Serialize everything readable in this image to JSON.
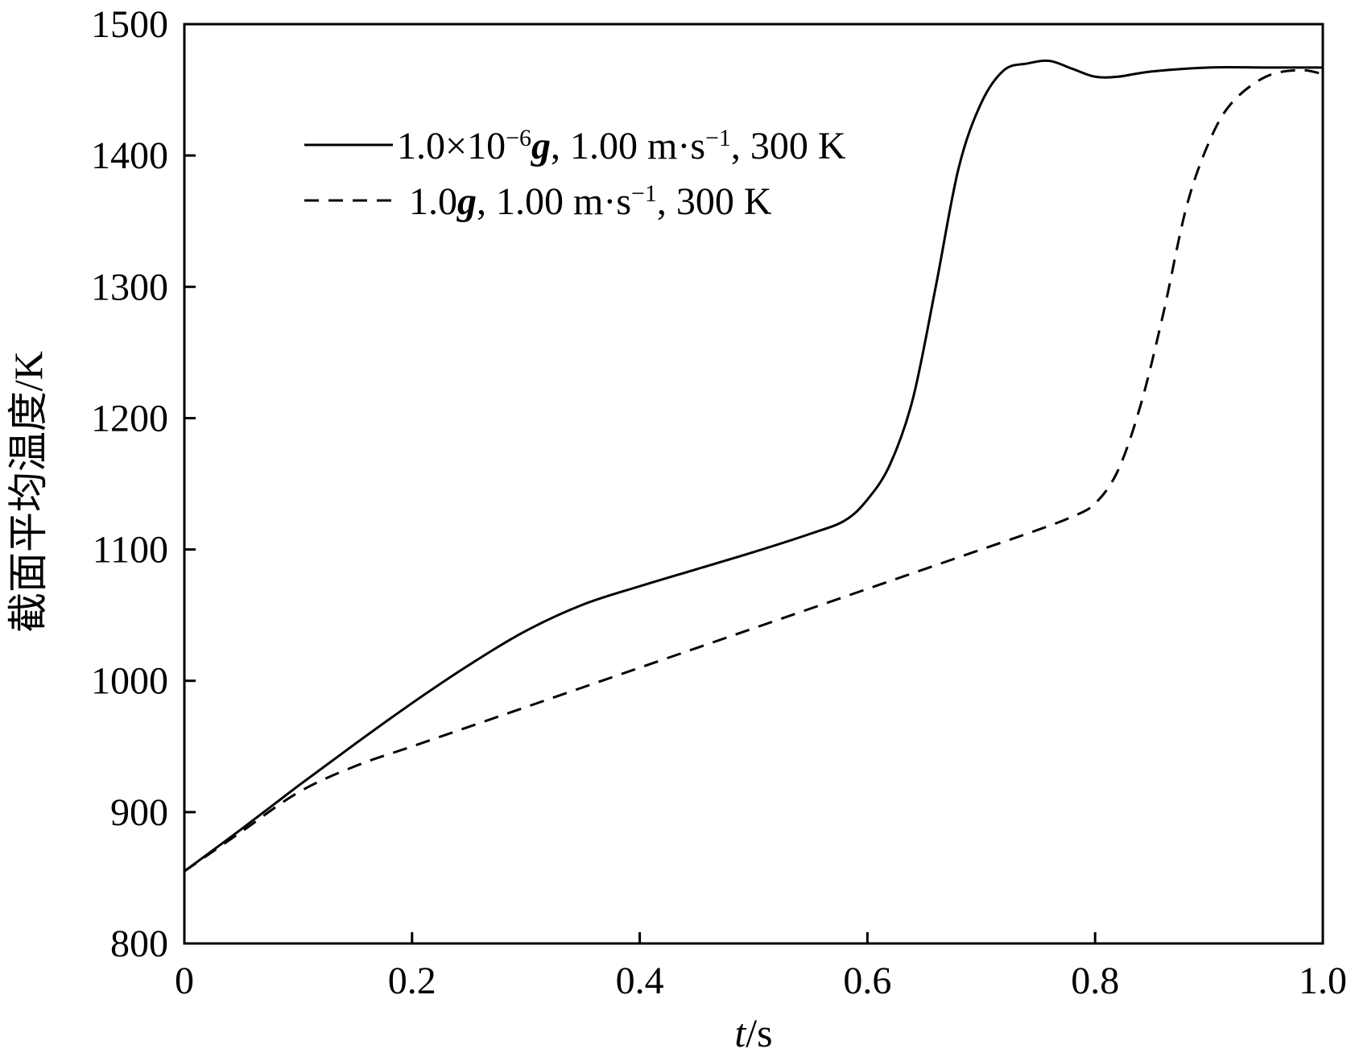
{
  "chart_data": {
    "type": "line",
    "title": "",
    "xlabel": {
      "var": "t",
      "unit": "/s"
    },
    "ylabel": "截面平均温度/K",
    "xlim": [
      0,
      1.0
    ],
    "ylim": [
      800,
      1500
    ],
    "xticks": [
      "0",
      "0.2",
      "0.4",
      "0.6",
      "0.8",
      "1.0"
    ],
    "xtick_values": [
      0,
      0.2,
      0.4,
      0.6,
      0.8,
      1.0
    ],
    "yticks": [
      "800",
      "900",
      "1000",
      "1100",
      "1200",
      "1300",
      "1400",
      "1500"
    ],
    "ytick_values": [
      800,
      900,
      1000,
      1100,
      1200,
      1300,
      1400,
      1500
    ],
    "grid": false,
    "legend_position": "top-left",
    "series": [
      {
        "name": "1.0×10⁻⁶g, 1.00 m·s⁻¹, 300 K",
        "legend": {
          "pre": "1.0×10",
          "sup1": "−6",
          "bold": "g",
          "mid": ", 1.00 m·s",
          "sup2": "−1",
          "post": ", 300 K"
        },
        "style": "solid",
        "x": [
          0,
          0.05,
          0.1,
          0.15,
          0.2,
          0.25,
          0.3,
          0.35,
          0.4,
          0.45,
          0.5,
          0.55,
          0.58,
          0.6,
          0.62,
          0.64,
          0.66,
          0.68,
          0.7,
          0.72,
          0.74,
          0.76,
          0.78,
          0.8,
          0.82,
          0.85,
          0.9,
          0.95,
          1.0
        ],
        "y": [
          855,
          887,
          920,
          952,
          983,
          1012,
          1038,
          1058,
          1072,
          1085,
          1098,
          1112,
          1122,
          1138,
          1165,
          1215,
          1300,
          1390,
          1440,
          1465,
          1470,
          1472,
          1466,
          1460,
          1460,
          1464,
          1467,
          1467,
          1467
        ]
      },
      {
        "name": "1.0g, 1.00 m·s⁻¹, 300 K",
        "legend": {
          "pre": "1.0",
          "sup1": "",
          "bold": "g",
          "mid": ", 1.00 m·s",
          "sup2": "−1",
          "post": ", 300 K"
        },
        "style": "dashed",
        "x": [
          0,
          0.05,
          0.1,
          0.15,
          0.2,
          0.25,
          0.3,
          0.35,
          0.4,
          0.45,
          0.5,
          0.55,
          0.6,
          0.65,
          0.7,
          0.75,
          0.78,
          0.8,
          0.82,
          0.84,
          0.86,
          0.88,
          0.9,
          0.92,
          0.95,
          0.98,
          1.0
        ],
        "y": [
          855,
          885,
          915,
          935,
          950,
          965,
          980,
          995,
          1010,
          1025,
          1040,
          1055,
          1070,
          1085,
          1100,
          1115,
          1125,
          1135,
          1160,
          1210,
          1280,
          1360,
          1410,
          1440,
          1460,
          1465,
          1462
        ]
      }
    ]
  }
}
